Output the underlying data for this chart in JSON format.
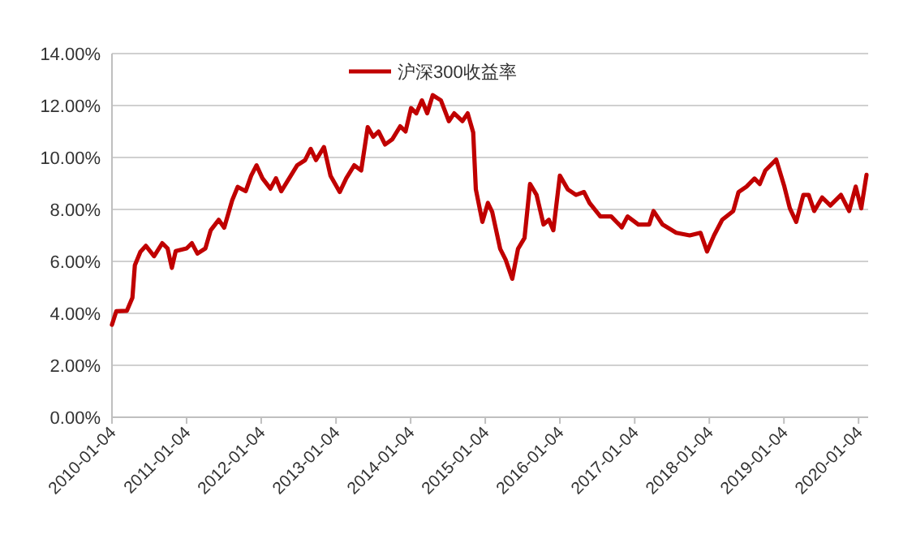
{
  "chart_data": {
    "type": "line",
    "legend": "top",
    "grid": "y",
    "line_style": "solid",
    "marker": "none",
    "xlim": [
      "2010-01-04",
      "2020-02-20"
    ],
    "xticks": [
      "2010-01-04",
      "2011-01-04",
      "2012-01-04",
      "2013-01-04",
      "2014-01-04",
      "2015-01-04",
      "2016-01-04",
      "2017-01-04",
      "2018-01-04",
      "2019-01-04",
      "2020-01-04"
    ],
    "ylim": [
      0,
      14
    ],
    "yticks": [
      {
        "value": 0,
        "label": "0.00%"
      },
      {
        "value": 2,
        "label": "2.00%"
      },
      {
        "value": 4,
        "label": "4.00%"
      },
      {
        "value": 6,
        "label": "6.00%"
      },
      {
        "value": 8,
        "label": "8.00%"
      },
      {
        "value": 10,
        "label": "10.00%"
      },
      {
        "value": 12,
        "label": "12.00%"
      },
      {
        "value": 14,
        "label": "14.00%"
      }
    ],
    "x": [
      "2010-01-04",
      "2010-01-25",
      "2010-03-18",
      "2010-04-14",
      "2010-04-26",
      "2010-05-23",
      "2010-06-19",
      "2010-07-29",
      "2010-09-07",
      "2010-10-03",
      "2010-10-24",
      "2010-11-12",
      "2011-01-04",
      "2011-01-30",
      "2011-02-26",
      "2011-04-06",
      "2011-05-02",
      "2011-06-10",
      "2011-07-07",
      "2011-08-15",
      "2011-09-11",
      "2011-10-20",
      "2011-11-16",
      "2011-12-12",
      "2012-01-10",
      "2012-02-18",
      "2012-03-16",
      "2012-04-11",
      "2012-05-20",
      "2012-06-28",
      "2012-08-06",
      "2012-09-02",
      "2012-09-28",
      "2012-11-06",
      "2012-12-08",
      "2013-01-22",
      "2013-02-23",
      "2013-04-03",
      "2013-05-07",
      "2013-06-08",
      "2013-07-05",
      "2013-07-31",
      "2013-09-01",
      "2013-10-06",
      "2013-11-14",
      "2013-12-10",
      "2014-01-06",
      "2014-02-01",
      "2014-02-28",
      "2014-03-26",
      "2014-04-22",
      "2014-06-01",
      "2014-07-10",
      "2014-08-05",
      "2014-09-14",
      "2014-10-10",
      "2014-11-06",
      "2014-11-19",
      "2014-12-21",
      "2015-01-17",
      "2015-02-07",
      "2015-03-18",
      "2015-04-14",
      "2015-05-16",
      "2015-06-13",
      "2015-07-15",
      "2015-08-11",
      "2015-09-12",
      "2015-10-16",
      "2015-11-11",
      "2015-12-03",
      "2016-01-04",
      "2016-02-12",
      "2016-03-23",
      "2016-05-01",
      "2016-05-28",
      "2016-07-20",
      "2016-09-11",
      "2016-11-02",
      "2016-11-30",
      "2017-01-22",
      "2017-03-16",
      "2017-04-06",
      "2017-05-20",
      "2017-07-26",
      "2017-09-30",
      "2017-11-22",
      "2017-12-24",
      "2018-01-27",
      "2018-03-08",
      "2018-05-01",
      "2018-05-27",
      "2018-07-05",
      "2018-08-13",
      "2018-09-08",
      "2018-10-05",
      "2018-11-27",
      "2019-01-06",
      "2019-02-02",
      "2019-03-05",
      "2019-04-09",
      "2019-05-05",
      "2019-06-01",
      "2019-07-10",
      "2019-08-19",
      "2019-10-10",
      "2019-11-19",
      "2019-12-21",
      "2020-01-17",
      "2020-02-12"
    ],
    "series": [
      {
        "name": "沪深300收益率",
        "color": "#c00000",
        "values": [
          3.56,
          4.08,
          4.1,
          4.6,
          5.85,
          6.37,
          6.6,
          6.2,
          6.7,
          6.5,
          5.75,
          6.4,
          6.5,
          6.7,
          6.3,
          6.5,
          7.2,
          7.6,
          7.3,
          8.35,
          8.87,
          8.7,
          9.3,
          9.7,
          9.2,
          8.8,
          9.2,
          8.7,
          9.2,
          9.7,
          9.9,
          10.33,
          9.9,
          10.4,
          9.3,
          8.67,
          9.2,
          9.7,
          9.5,
          11.17,
          10.8,
          11.0,
          10.5,
          10.7,
          11.2,
          11.0,
          11.9,
          11.7,
          12.2,
          11.7,
          12.4,
          12.2,
          11.4,
          11.7,
          11.4,
          11.7,
          10.96,
          8.77,
          7.52,
          8.25,
          7.9,
          6.48,
          6.06,
          5.33,
          6.48,
          6.9,
          8.98,
          8.56,
          7.42,
          7.6,
          7.2,
          9.3,
          8.77,
          8.56,
          8.67,
          8.25,
          7.73,
          7.73,
          7.31,
          7.73,
          7.42,
          7.42,
          7.94,
          7.42,
          7.1,
          7.0,
          7.1,
          6.38,
          7.0,
          7.6,
          7.94,
          8.67,
          8.88,
          9.19,
          8.98,
          9.5,
          9.92,
          8.88,
          8.04,
          7.52,
          8.56,
          8.56,
          7.94,
          8.46,
          8.15,
          8.56,
          7.94,
          8.88,
          8.04,
          9.33
        ]
      }
    ]
  }
}
